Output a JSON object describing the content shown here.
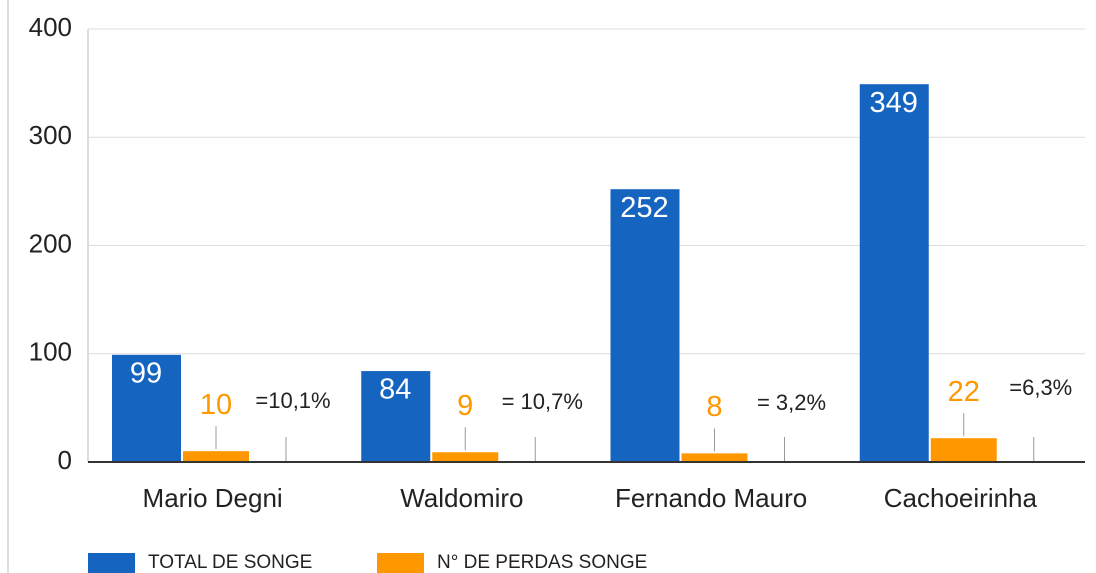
{
  "chart_data": {
    "type": "bar",
    "categories": [
      "Mario Degni",
      "Waldomiro",
      "Fernando Mauro",
      "Cachoeirinha"
    ],
    "series": [
      {
        "name": "TOTAL DE SONGE",
        "color": "#1565c0",
        "values": [
          99,
          84,
          252,
          349
        ]
      },
      {
        "name": "N° DE PERDAS SONGE",
        "color": "#ff9800",
        "values": [
          10,
          9,
          8,
          22
        ]
      }
    ],
    "annotations": [
      "=10,1%",
      "= 10,7%",
      "= 3,2%",
      "=6,3%"
    ],
    "ylim": [
      0,
      400
    ],
    "yticks": [
      0,
      100,
      200,
      300,
      400
    ],
    "grid": true,
    "legend": "bottom"
  }
}
